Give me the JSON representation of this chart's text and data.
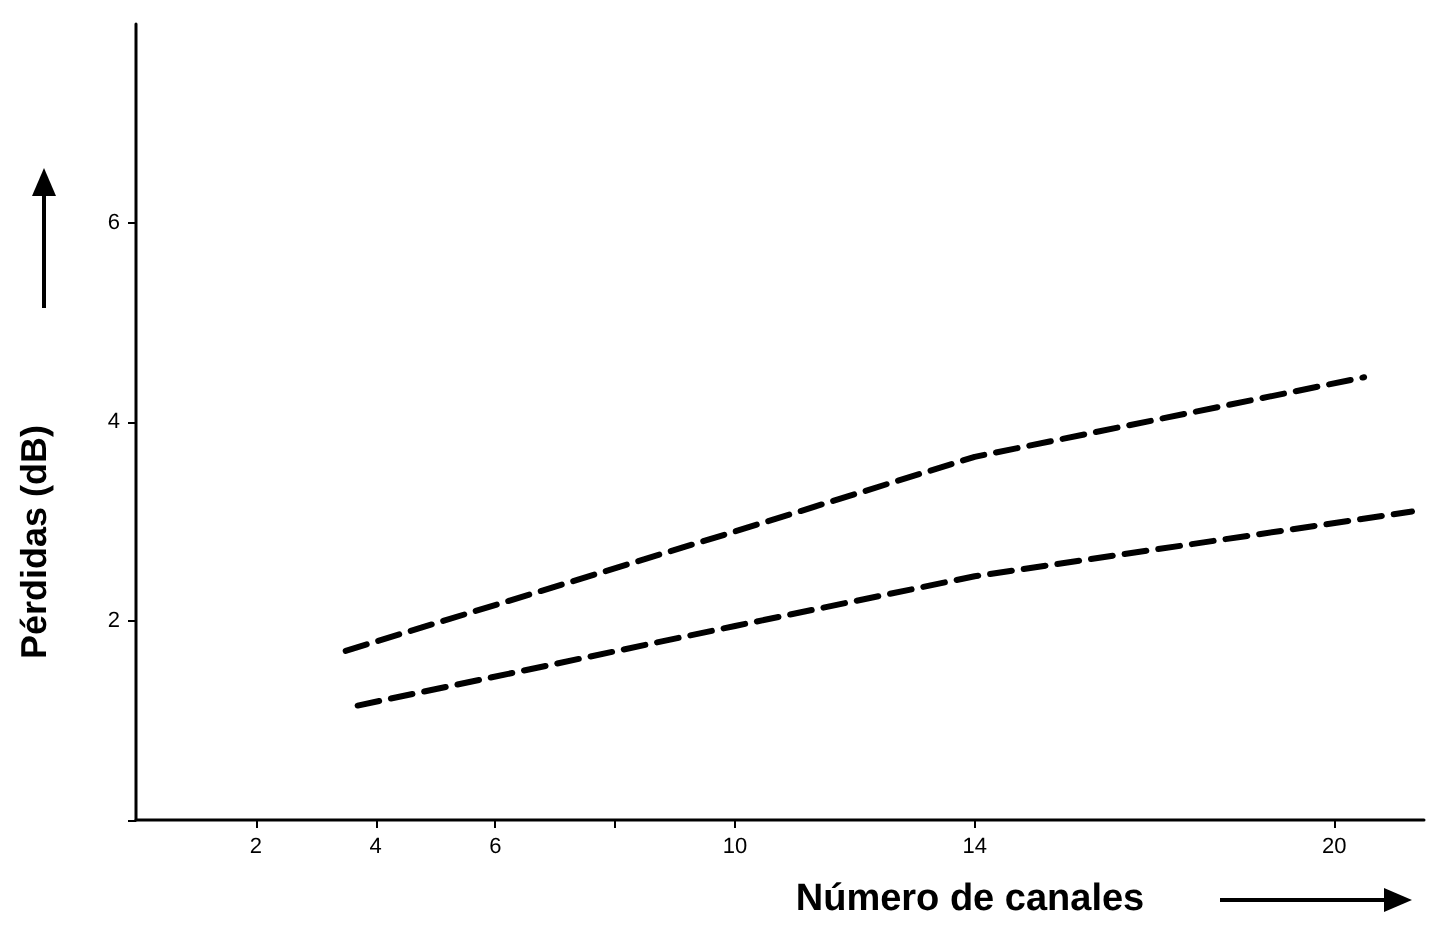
{
  "chart_data": {
    "type": "line",
    "xlabel": "Número de canales",
    "ylabel": "Pérdidas (dB)",
    "xlim": [
      0,
      21.5
    ],
    "xticks": [
      2,
      4,
      6,
      {
        "value": 8,
        "label": null
      },
      10,
      14,
      20
    ],
    "ylim": [
      0,
      8
    ],
    "yticks": [
      {
        "value": 0,
        "label": null
      },
      2,
      4,
      6
    ],
    "series": [
      {
        "color": "#000000",
        "x": [
          3.5,
          10,
          14,
          20.5
        ],
        "values": [
          1.7,
          2.9,
          3.65,
          4.45
        ]
      },
      {
        "color": "#000000",
        "x": [
          3.7,
          10,
          14,
          21.3
        ],
        "values": [
          1.15,
          1.95,
          2.45,
          3.1
        ]
      }
    ],
    "grid": false,
    "marker": "none",
    "line_style": "dashed"
  }
}
